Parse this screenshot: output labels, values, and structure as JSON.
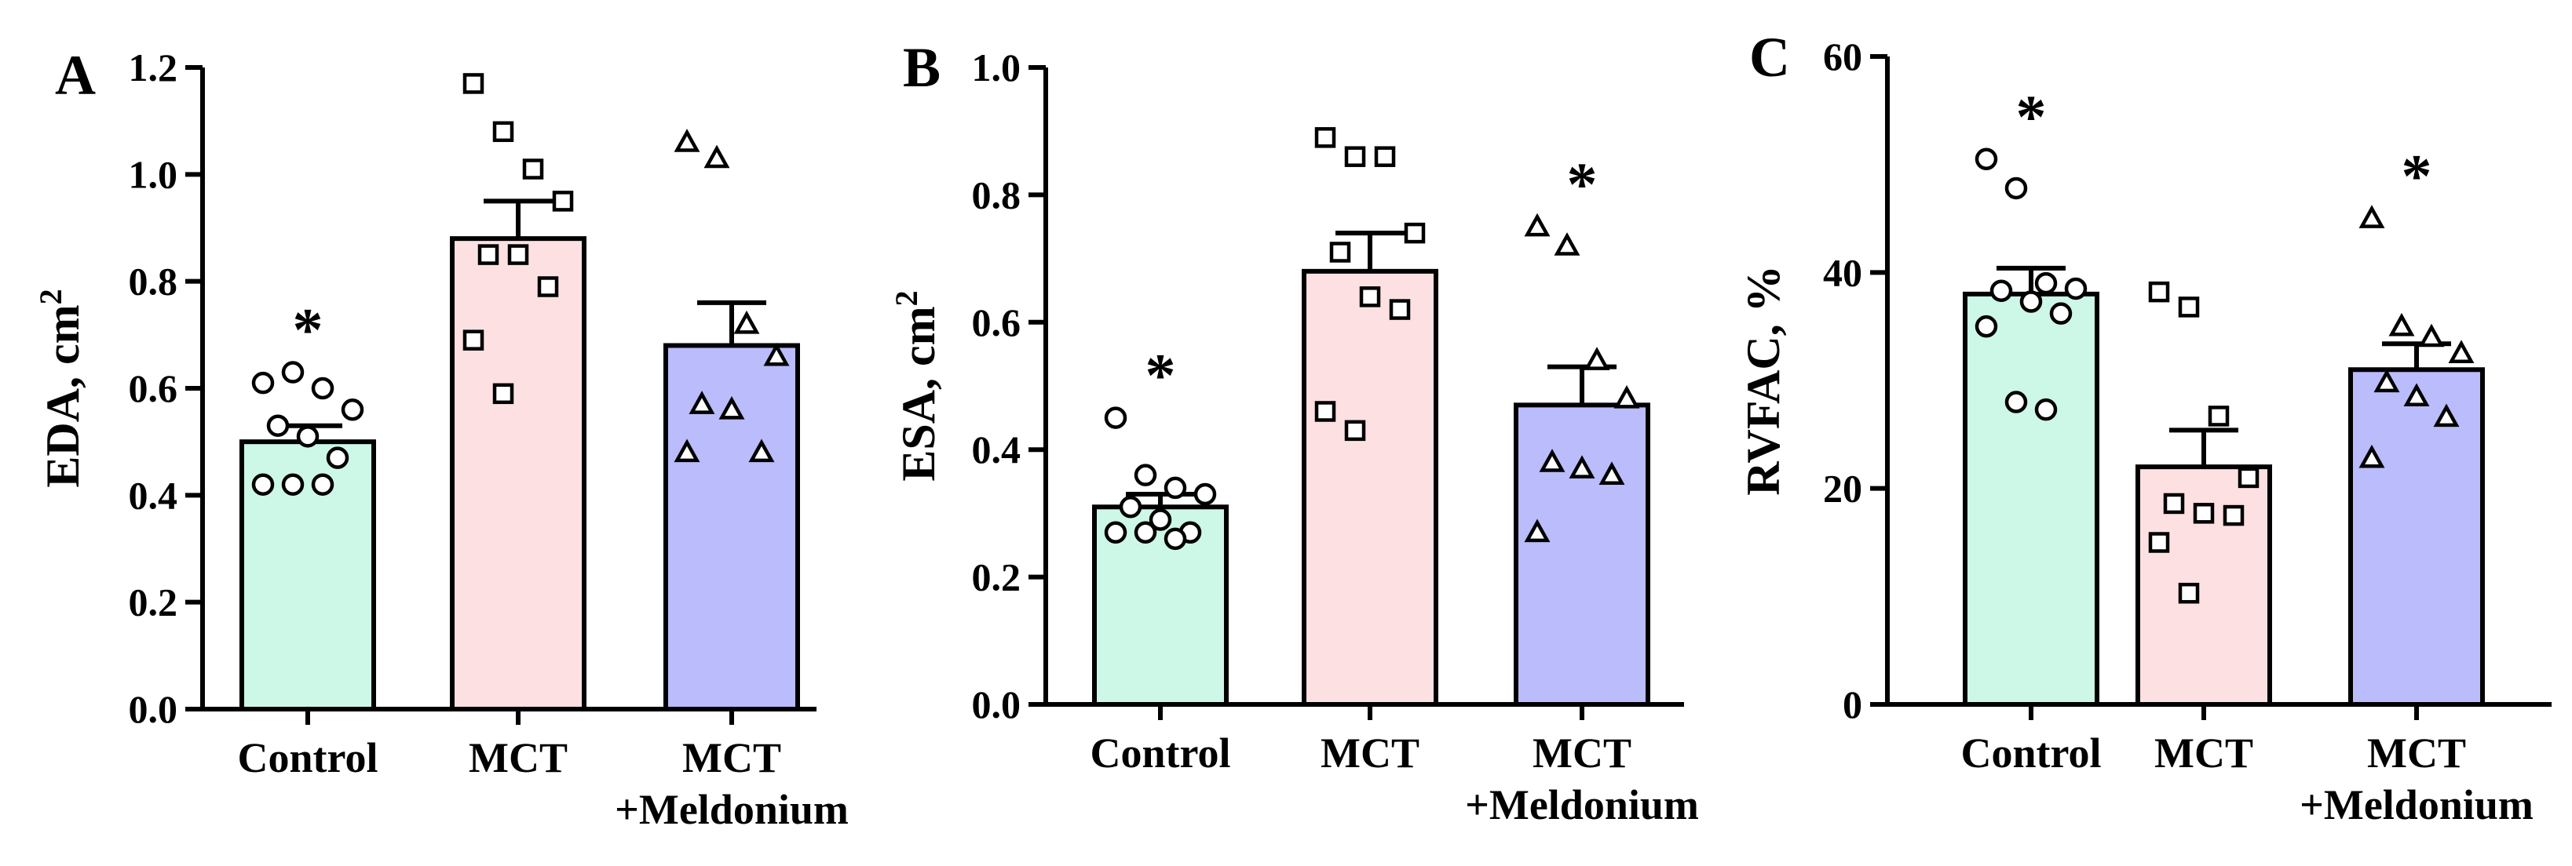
{
  "chart_data": [
    {
      "type": "bar",
      "panel": "A",
      "ylabel": "EDA, cm",
      "ylabel_sup": "2",
      "ylim": [
        0,
        1.2
      ],
      "yticks": [
        "0.0",
        "0.2",
        "0.4",
        "0.6",
        "0.8",
        "1.0",
        "1.2"
      ],
      "categories": [
        {
          "lines": [
            "Control"
          ]
        },
        {
          "lines": [
            "MCT"
          ]
        },
        {
          "lines": [
            "MCT",
            "+Meldonium"
          ]
        }
      ],
      "colors": [
        "#cdf7e6",
        "#fde0e2",
        "#babcfb"
      ],
      "markers": [
        "circle",
        "square",
        "triangle"
      ],
      "series": [
        {
          "name": "Control",
          "mean": 0.5,
          "sem": 0.03,
          "significant": true,
          "points": [
            0.61,
            0.63,
            0.6,
            0.56,
            0.53,
            0.51,
            0.47,
            0.42,
            0.42,
            0.42
          ]
        },
        {
          "name": "MCT",
          "mean": 0.88,
          "sem": 0.07,
          "significant": false,
          "points": [
            1.17,
            1.08,
            1.01,
            0.95,
            0.85,
            0.85,
            0.79,
            0.69,
            0.59
          ]
        },
        {
          "name": "MCT +Meldonium",
          "mean": 0.68,
          "sem": 0.08,
          "significant": false,
          "points": [
            1.06,
            1.03,
            0.72,
            0.66,
            0.57,
            0.56,
            0.48,
            0.48
          ]
        }
      ]
    },
    {
      "type": "bar",
      "panel": "B",
      "ylabel": "ESA, cm",
      "ylabel_sup": "2",
      "ylim": [
        0,
        1.0
      ],
      "yticks": [
        "0.0",
        "0.2",
        "0.4",
        "0.6",
        "0.8",
        "1.0"
      ],
      "categories": [
        {
          "lines": [
            "Control"
          ]
        },
        {
          "lines": [
            "MCT"
          ]
        },
        {
          "lines": [
            "MCT",
            "+Meldonium"
          ]
        }
      ],
      "colors": [
        "#cdf7e6",
        "#fde0e2",
        "#babcfb"
      ],
      "markers": [
        "circle",
        "square",
        "triangle"
      ],
      "series": [
        {
          "name": "Control",
          "mean": 0.31,
          "sem": 0.02,
          "significant": true,
          "points": [
            0.45,
            0.36,
            0.34,
            0.33,
            0.31,
            0.29,
            0.27,
            0.27,
            0.27,
            0.26
          ]
        },
        {
          "name": "MCT",
          "mean": 0.68,
          "sem": 0.06,
          "significant": false,
          "points": [
            0.89,
            0.86,
            0.86,
            0.74,
            0.71,
            0.64,
            0.62,
            0.46,
            0.43
          ]
        },
        {
          "name": "MCT +Meldonium",
          "mean": 0.47,
          "sem": 0.06,
          "significant": true,
          "points": [
            0.75,
            0.72,
            0.54,
            0.48,
            0.38,
            0.37,
            0.36,
            0.27
          ]
        }
      ]
    },
    {
      "type": "bar",
      "panel": "C",
      "ylabel": "RVFAC, %",
      "ylabel_sup": "",
      "ylim": [
        0,
        60
      ],
      "yticks": [
        "0",
        "20",
        "40",
        "60"
      ],
      "categories": [
        {
          "lines": [
            "Control"
          ]
        },
        {
          "lines": [
            "MCT"
          ]
        },
        {
          "lines": [
            "MCT",
            "+Meldonium"
          ]
        }
      ],
      "colors": [
        "#cdf7e6",
        "#fde0e2",
        "#babcfb"
      ],
      "markers": [
        "circle",
        "square",
        "triangle"
      ],
      "series": [
        {
          "name": "Control",
          "mean": 38.0,
          "sem": 2.4,
          "significant": true,
          "points": [
            50.5,
            47.8,
            39.0,
            38.5,
            38.3,
            37.3,
            36.2,
            35.0,
            28.0,
            27.3
          ]
        },
        {
          "name": "MCT",
          "mean": 22.0,
          "sem": 3.4,
          "significant": false,
          "points": [
            38.2,
            36.8,
            26.7,
            21.0,
            18.6,
            17.7,
            17.5,
            15.0,
            10.3
          ]
        },
        {
          "name": "MCT +Meldonium",
          "mean": 31.0,
          "sem": 2.4,
          "significant": true,
          "points": [
            45.0,
            35.0,
            34.0,
            32.5,
            29.8,
            28.5,
            26.6,
            22.8
          ]
        }
      ]
    }
  ]
}
